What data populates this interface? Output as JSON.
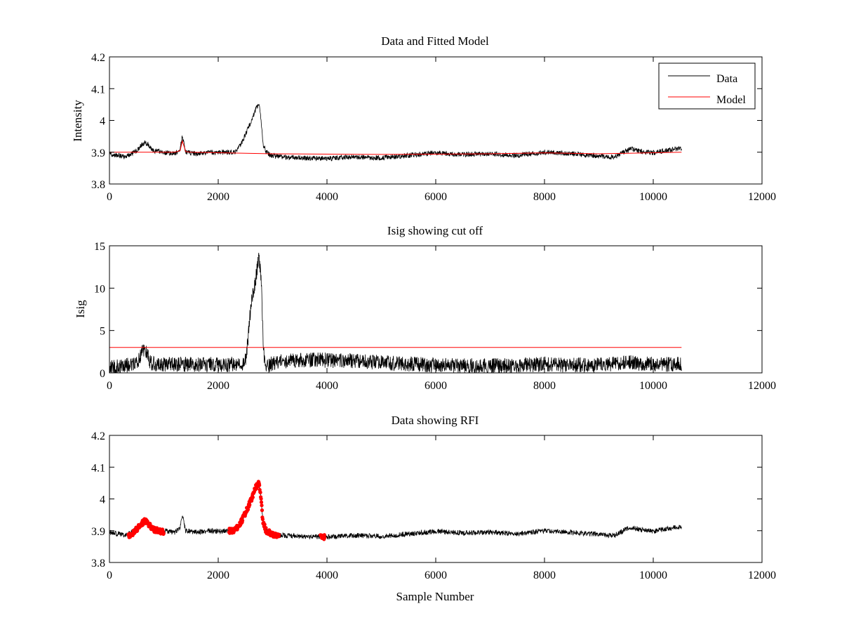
{
  "colors": {
    "data": "#000000",
    "model": "#ff0000",
    "rfi": "#ff0000",
    "axes": "#000000",
    "background": "#ffffff"
  },
  "chart_data": [
    {
      "type": "line",
      "title": "Data and Fitted Model",
      "xlabel": "",
      "ylabel": "Intensity",
      "xlim": [
        0,
        12000
      ],
      "ylim": [
        3.8,
        4.2
      ],
      "xticks": [
        0,
        2000,
        4000,
        6000,
        8000,
        10000,
        12000
      ],
      "yticks": [
        3.8,
        3.9,
        4,
        4.1,
        4.2
      ],
      "xtick_labels": [
        "0",
        "2000",
        "4000",
        "6000",
        "8000",
        "10000",
        "12000"
      ],
      "ytick_labels": [
        "3.8",
        "3.9",
        "4",
        "4.1",
        "4.2"
      ],
      "grid": false,
      "legend": {
        "placement": "top-right",
        "entries": [
          {
            "label": "Data",
            "color": "#000000"
          },
          {
            "label": "Model",
            "color": "#ff0000"
          }
        ]
      },
      "series": [
        {
          "name": "Data",
          "color": "#000000",
          "noise": 0.008,
          "x": [
            0,
            300,
            500,
            600,
            650,
            700,
            800,
            1000,
            1200,
            1300,
            1340,
            1360,
            1400,
            1600,
            1800,
            2000,
            2200,
            2300,
            2400,
            2500,
            2600,
            2700,
            2750,
            2790,
            2820,
            2880,
            3000,
            3500,
            4000,
            4500,
            5000,
            5500,
            6000,
            6500,
            7000,
            7500,
            8000,
            8500,
            9000,
            9300,
            9500,
            9600,
            9800,
            10000,
            10200,
            10400,
            10520
          ],
          "y": [
            3.895,
            3.885,
            3.905,
            3.925,
            3.93,
            3.925,
            3.905,
            3.9,
            3.895,
            3.91,
            3.95,
            3.935,
            3.9,
            3.895,
            3.9,
            3.898,
            3.9,
            3.9,
            3.92,
            3.955,
            3.995,
            4.04,
            4.05,
            4.0,
            3.93,
            3.9,
            3.888,
            3.882,
            3.88,
            3.885,
            3.882,
            3.89,
            3.898,
            3.893,
            3.895,
            3.89,
            3.9,
            3.895,
            3.888,
            3.885,
            3.905,
            3.91,
            3.902,
            3.898,
            3.905,
            3.91,
            3.91
          ]
        },
        {
          "name": "Model",
          "color": "#ff0000",
          "noise": 0,
          "x": [
            0,
            1200,
            1300,
            1340,
            1360,
            1400,
            1500,
            3000,
            5000,
            7000,
            8000,
            9000,
            10520
          ],
          "y": [
            3.9,
            3.9,
            3.905,
            3.935,
            3.925,
            3.902,
            3.9,
            3.895,
            3.893,
            3.895,
            3.898,
            3.895,
            3.9
          ]
        }
      ]
    },
    {
      "type": "line",
      "title": "Isig showing cut off",
      "xlabel": "",
      "ylabel": "Isig",
      "xlim": [
        0,
        12000
      ],
      "ylim": [
        0,
        15
      ],
      "xticks": [
        0,
        2000,
        4000,
        6000,
        8000,
        10000,
        12000
      ],
      "yticks": [
        0,
        5,
        10,
        15
      ],
      "xtick_labels": [
        "0",
        "2000",
        "4000",
        "6000",
        "8000",
        "10000",
        "12000"
      ],
      "ytick_labels": [
        "0",
        "5",
        "10",
        "15"
      ],
      "grid": false,
      "series": [
        {
          "name": "Isig",
          "color": "#000000",
          "noise": 0.9,
          "x": [
            0,
            200,
            400,
            550,
            620,
            680,
            750,
            900,
            1300,
            1800,
            2300,
            2450,
            2500,
            2550,
            2600,
            2700,
            2750,
            2790,
            2830,
            2870,
            3000,
            3500,
            4000,
            4500,
            5000,
            6000,
            7000,
            8000,
            9000,
            9500,
            10000,
            10520
          ],
          "y": [
            0.6,
            0.8,
            1.0,
            1.6,
            2.8,
            2.6,
            1.2,
            1.0,
            1.0,
            1.0,
            1.0,
            1.0,
            1.5,
            4.0,
            8.0,
            11.5,
            13.8,
            11.0,
            3.0,
            0.5,
            1.2,
            1.5,
            1.5,
            1.4,
            1.2,
            0.9,
            0.8,
            1.0,
            0.9,
            1.3,
            1.0,
            1.0
          ]
        },
        {
          "name": "Cut off",
          "color": "#ff0000",
          "noise": 0,
          "x": [
            0,
            10520
          ],
          "y": [
            3,
            3
          ]
        }
      ]
    },
    {
      "type": "line",
      "title": "Data showing RFI",
      "xlabel": "Sample Number",
      "ylabel": "",
      "xlim": [
        0,
        12000
      ],
      "ylim": [
        3.8,
        4.2
      ],
      "xticks": [
        0,
        2000,
        4000,
        6000,
        8000,
        10000,
        12000
      ],
      "yticks": [
        3.8,
        3.9,
        4,
        4.1,
        4.2
      ],
      "xtick_labels": [
        "0",
        "2000",
        "4000",
        "6000",
        "8000",
        "10000",
        "12000"
      ],
      "ytick_labels": [
        "3.8",
        "3.9",
        "4",
        "4.1",
        "4.2"
      ],
      "grid": false,
      "series": [
        {
          "name": "Data",
          "color": "#000000",
          "noise": 0.008,
          "x": [
            0,
            300,
            500,
            600,
            650,
            700,
            800,
            1000,
            1200,
            1300,
            1340,
            1360,
            1400,
            1600,
            1800,
            2000,
            2200,
            2300,
            2400,
            2500,
            2600,
            2700,
            2750,
            2790,
            2820,
            2880,
            3000,
            3500,
            4000,
            4500,
            5000,
            5500,
            6000,
            6500,
            7000,
            7500,
            8000,
            8500,
            9000,
            9300,
            9500,
            9600,
            9800,
            10000,
            10200,
            10400,
            10520
          ],
          "y": [
            3.895,
            3.885,
            3.905,
            3.925,
            3.93,
            3.925,
            3.905,
            3.9,
            3.895,
            3.91,
            3.95,
            3.935,
            3.9,
            3.895,
            3.9,
            3.898,
            3.9,
            3.9,
            3.92,
            3.955,
            3.995,
            4.04,
            4.05,
            4.0,
            3.93,
            3.9,
            3.888,
            3.882,
            3.88,
            3.885,
            3.882,
            3.89,
            3.898,
            3.893,
            3.895,
            3.89,
            3.9,
            3.895,
            3.888,
            3.885,
            3.905,
            3.91,
            3.902,
            3.898,
            3.905,
            3.91,
            3.91
          ]
        },
        {
          "name": "RFI",
          "color": "#ff0000",
          "mode": "markers",
          "noise": 0.008,
          "segments": [
            {
              "x": [
                350,
                450,
                550,
                650,
                700,
                800,
                900,
                1000
              ],
              "y": [
                3.885,
                3.895,
                3.915,
                3.93,
                3.925,
                3.905,
                3.9,
                3.895
              ]
            },
            {
              "x": [
                2200,
                2300,
                2400,
                2500,
                2600,
                2700,
                2750,
                2790,
                2820,
                2880,
                3000,
                3120
              ],
              "y": [
                3.9,
                3.9,
                3.92,
                3.955,
                3.995,
                4.04,
                4.05,
                4.0,
                3.93,
                3.9,
                3.888,
                3.885
              ]
            },
            {
              "x": [
                3880,
                3920,
                3960
              ],
              "y": [
                3.885,
                3.875,
                3.88
              ]
            }
          ]
        }
      ]
    }
  ]
}
